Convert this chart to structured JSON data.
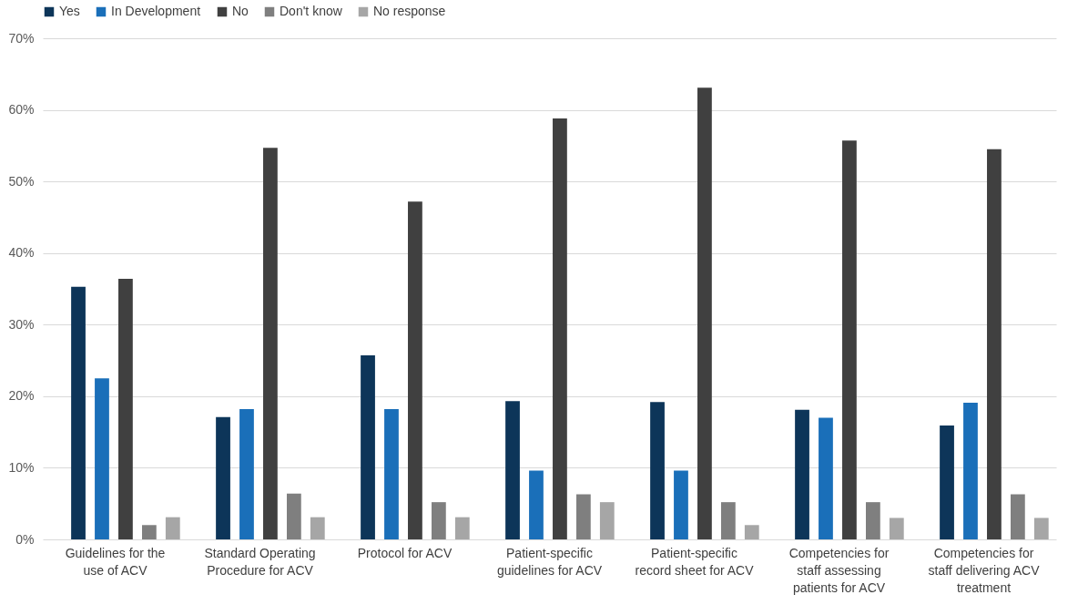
{
  "chart_data": {
    "type": "bar",
    "categories": [
      "Guidelines for the use of ACV",
      "Standard Operating Procedure for ACV",
      "Protocol for ACV",
      "Patient-specific guidelines for ACV",
      "Patient-specific record sheet for ACV",
      "Competencies for staff assessing patients for ACV",
      "Competencies for staff delivering ACV treatment"
    ],
    "series": [
      {
        "name": "Yes",
        "color": "#0d3559",
        "values": [
          35.3,
          17.1,
          25.7,
          19.3,
          19.2,
          18.1,
          15.9
        ]
      },
      {
        "name": "In Development",
        "color": "#1a6fb9",
        "values": [
          22.5,
          18.2,
          18.2,
          9.6,
          9.6,
          17.0,
          19.1
        ]
      },
      {
        "name": "No",
        "color": "#404040",
        "values": [
          36.4,
          54.7,
          47.2,
          58.8,
          63.1,
          55.7,
          54.5
        ]
      },
      {
        "name": "Don't know",
        "color": "#7f7f7f",
        "values": [
          2.0,
          6.4,
          5.2,
          6.3,
          5.2,
          5.2,
          6.3
        ]
      },
      {
        "name": "No response",
        "color": "#a6a6a6",
        "values": [
          3.1,
          3.1,
          3.1,
          5.2,
          2.0,
          3.0,
          3.0
        ]
      }
    ],
    "ylim": [
      0,
      70
    ],
    "yticks": [
      {
        "value": 0,
        "label": "0%"
      },
      {
        "value": 10,
        "label": "10%"
      },
      {
        "value": 20,
        "label": "20%"
      },
      {
        "value": 30,
        "label": "30%"
      },
      {
        "value": 40,
        "label": "40%"
      },
      {
        "value": 50,
        "label": "50%"
      },
      {
        "value": 60,
        "label": "60%"
      },
      {
        "value": 70,
        "label": "70%"
      }
    ],
    "grid": "y",
    "legend": "top"
  }
}
